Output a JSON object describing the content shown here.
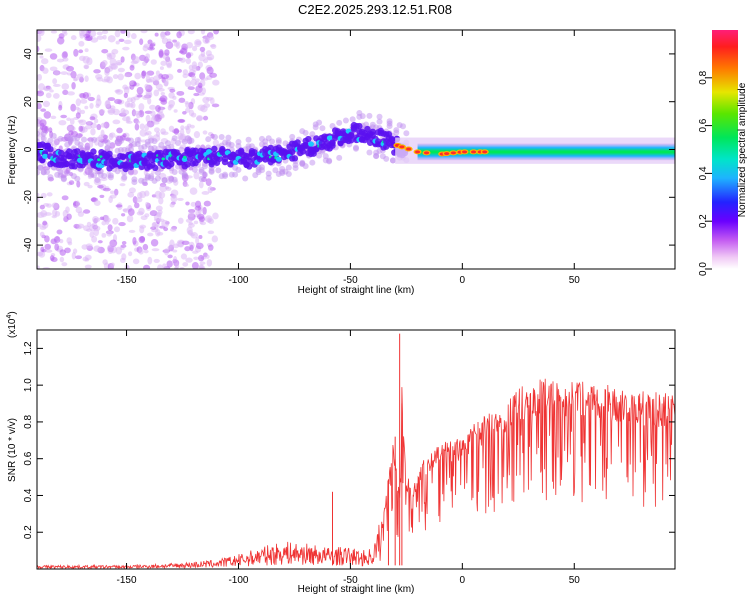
{
  "title": "C2E2.2025.293.12.51.R08",
  "chart_data": [
    {
      "type": "heatmap",
      "xlabel": "Height of straight line (km)",
      "ylabel": "Frequency (Hz)",
      "xlim": [
        -190,
        95
      ],
      "ylim": [
        -50,
        50
      ],
      "xticks": [
        "-150",
        "-100",
        "-50",
        "0",
        "50"
      ],
      "xtick_values": [
        -150,
        -100,
        -50,
        0,
        50
      ],
      "yticks": [
        "-40",
        "-20",
        "0",
        "20",
        "40"
      ],
      "ytick_values": [
        -40,
        -20,
        0,
        20,
        40
      ],
      "ridge": {
        "x": [
          -185,
          -170,
          -150,
          -130,
          -110,
          -95,
          -80,
          -65,
          -50,
          -40,
          -30,
          -20,
          -10,
          0,
          10,
          20,
          40,
          60,
          80,
          95
        ],
        "y": [
          -3,
          -4,
          -5,
          -4,
          -3,
          -4,
          -2,
          2,
          7,
          6,
          2,
          -1,
          -2,
          -1,
          -1,
          -1,
          -1,
          -1,
          -1,
          -1
        ]
      },
      "colorbar": {
        "label": "Normalized spectral amplitude",
        "range": [
          0,
          1
        ],
        "ticks": [
          "0.0",
          "0.2",
          "0.4",
          "0.6",
          "0.8"
        ],
        "tick_values": [
          0.0,
          0.2,
          0.4,
          0.6,
          0.8
        ]
      }
    },
    {
      "type": "line",
      "xlabel": "Height of straight line (km)",
      "ylabel": "SNR (10 * v/v)",
      "y_multiplier": "(x10",
      "y_multiplier_exp": "4",
      "y_multiplier_close": ")",
      "xlim": [
        -190,
        95
      ],
      "ylim": [
        0,
        1.3
      ],
      "xticks": [
        "-150",
        "-100",
        "-50",
        "0",
        "50"
      ],
      "xtick_values": [
        -150,
        -100,
        -50,
        0,
        50
      ],
      "yticks": [
        "0.2",
        "0.4",
        "0.6",
        "0.8",
        "1.0",
        "1.2"
      ],
      "ytick_values": [
        0.2,
        0.4,
        0.6,
        0.8,
        1.0,
        1.2
      ],
      "series": [
        {
          "name": "SNR",
          "color": "#ef3333",
          "envelope": {
            "x": [
              -190,
              -150,
              -130,
              -120,
              -110,
              -100,
              -90,
              -80,
              -70,
              -60,
              -50,
              -45,
              -40,
              -35,
              -31,
              -28,
              -27,
              -25,
              -22,
              -20,
              -15,
              -10,
              -5,
              0,
              5,
              10,
              15,
              20,
              25,
              30,
              35,
              40,
              45,
              50,
              60,
              70,
              80,
              90,
              95
            ],
            "y": [
              0.02,
              0.02,
              0.03,
              0.04,
              0.05,
              0.08,
              0.12,
              0.15,
              0.14,
              0.12,
              0.12,
              0.1,
              0.12,
              0.35,
              0.7,
              0.4,
              1.0,
              0.5,
              0.45,
              0.55,
              0.62,
              0.68,
              0.7,
              0.72,
              0.78,
              0.82,
              0.85,
              0.9,
              0.96,
              1.0,
              1.02,
              1.01,
              1.01,
              1.02,
              1.0,
              0.97,
              0.95,
              0.94,
              0.94
            ]
          },
          "spikes": [
            {
              "x": -28,
              "y": 1.28
            },
            {
              "x": -27,
              "y": 0.9
            },
            {
              "x": -30,
              "y": 0.72
            },
            {
              "x": -33,
              "y": 0.48
            },
            {
              "x": -58,
              "y": 0.42
            }
          ]
        }
      ]
    }
  ]
}
